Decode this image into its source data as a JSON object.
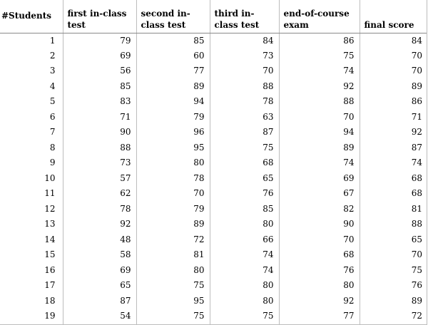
{
  "table": {
    "headers": [
      "#Students",
      "first in-class test",
      "second in-class test",
      "third in-class test",
      "end-of-course exam",
      "final score"
    ],
    "rows": [
      [
        "1",
        "79",
        "85",
        "84",
        "86",
        "84"
      ],
      [
        "2",
        "69",
        "60",
        "73",
        "75",
        "70"
      ],
      [
        "3",
        "56",
        "77",
        "70",
        "74",
        "70"
      ],
      [
        "4",
        "85",
        "89",
        "88",
        "92",
        "89"
      ],
      [
        "5",
        "83",
        "94",
        "78",
        "88",
        "86"
      ],
      [
        "6",
        "71",
        "79",
        "63",
        "70",
        "71"
      ],
      [
        "7",
        "90",
        "96",
        "87",
        "94",
        "92"
      ],
      [
        "8",
        "88",
        "95",
        "75",
        "89",
        "87"
      ],
      [
        "9",
        "73",
        "80",
        "68",
        "74",
        "74"
      ],
      [
        "10",
        "57",
        "78",
        "65",
        "69",
        "68"
      ],
      [
        "11",
        "62",
        "70",
        "76",
        "67",
        "68"
      ],
      [
        "12",
        "78",
        "79",
        "85",
        "82",
        "81"
      ],
      [
        "13",
        "92",
        "89",
        "80",
        "90",
        "88"
      ],
      [
        "14",
        "48",
        "72",
        "66",
        "70",
        "65"
      ],
      [
        "15",
        "58",
        "81",
        "74",
        "68",
        "70"
      ],
      [
        "16",
        "69",
        "80",
        "74",
        "76",
        "75"
      ],
      [
        "17",
        "65",
        "75",
        "80",
        "80",
        "76"
      ],
      [
        "18",
        "87",
        "95",
        "80",
        "92",
        "89"
      ],
      [
        "19",
        "54",
        "75",
        "75",
        "77",
        "72"
      ]
    ]
  }
}
